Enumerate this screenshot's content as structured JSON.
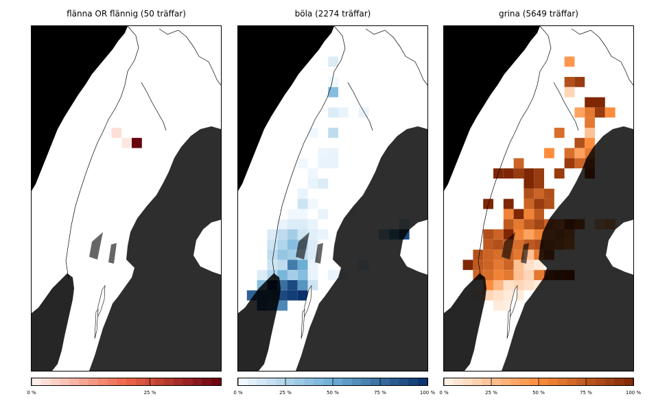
{
  "panels": [
    {
      "title": "flänna OR flännig (50 träffar)",
      "colormap": "reds",
      "colors": {
        "low": "#fff5f0",
        "mid": "#ef6548",
        "high": "#67000d"
      },
      "cbar_max_percent": 40,
      "ticks": [
        {
          "value": 0,
          "label": "0 %"
        },
        {
          "value": 25,
          "label": "25 %"
        }
      ],
      "cells": [
        {
          "c": 8,
          "r": 10,
          "v": 3
        },
        {
          "c": 9,
          "r": 11,
          "v": 2
        },
        {
          "c": 10,
          "r": 11,
          "v": 40
        }
      ]
    },
    {
      "title": "böla (2274 träffar)",
      "colormap": "blues",
      "colors": {
        "low": "#f7fbff",
        "mid": "#6baed6",
        "high": "#08306b"
      },
      "cbar_max_percent": 100,
      "ticks": [
        {
          "value": 0,
          "label": "0 %"
        },
        {
          "value": 25,
          "label": "25 %"
        },
        {
          "value": 50,
          "label": "50 %"
        },
        {
          "value": 75,
          "label": "75 %"
        },
        {
          "value": 100,
          "label": "100 %"
        }
      ],
      "cells": [
        {
          "c": 9,
          "r": 3,
          "v": 10
        },
        {
          "c": 9,
          "r": 5,
          "v": 2
        },
        {
          "c": 9,
          "r": 6,
          "v": 40
        },
        {
          "c": 9,
          "r": 8,
          "v": 10
        },
        {
          "c": 10,
          "r": 8,
          "v": 5
        },
        {
          "c": 12,
          "r": 8,
          "v": 5
        },
        {
          "c": 7,
          "r": 10,
          "v": 2
        },
        {
          "c": 9,
          "r": 10,
          "v": 20
        },
        {
          "c": 8,
          "r": 12,
          "v": 4
        },
        {
          "c": 9,
          "r": 12,
          "v": 5
        },
        {
          "c": 6,
          "r": 13,
          "v": 2
        },
        {
          "c": 8,
          "r": 13,
          "v": 5
        },
        {
          "c": 9,
          "r": 13,
          "v": 5
        },
        {
          "c": 7,
          "r": 14,
          "v": 3
        },
        {
          "c": 7,
          "r": 15,
          "v": 5
        },
        {
          "c": 6,
          "r": 16,
          "v": 5
        },
        {
          "c": 6,
          "r": 17,
          "v": 15
        },
        {
          "c": 7,
          "r": 17,
          "v": 2
        },
        {
          "c": 5,
          "r": 18,
          "v": 2
        },
        {
          "c": 6,
          "r": 18,
          "v": 2
        },
        {
          "c": 4,
          "r": 19,
          "v": 5
        },
        {
          "c": 5,
          "r": 19,
          "v": 10
        },
        {
          "c": 6,
          "r": 19,
          "v": 10
        },
        {
          "c": 7,
          "r": 19,
          "v": 5
        },
        {
          "c": 3,
          "r": 20,
          "v": 10
        },
        {
          "c": 4,
          "r": 20,
          "v": 20
        },
        {
          "c": 5,
          "r": 20,
          "v": 30
        },
        {
          "c": 6,
          "r": 20,
          "v": 15
        },
        {
          "c": 7,
          "r": 20,
          "v": 8
        },
        {
          "c": 8,
          "r": 20,
          "v": 5
        },
        {
          "c": 3,
          "r": 21,
          "v": 15
        },
        {
          "c": 4,
          "r": 21,
          "v": 25
        },
        {
          "c": 5,
          "r": 21,
          "v": 40
        },
        {
          "c": 6,
          "r": 21,
          "v": 30
        },
        {
          "c": 7,
          "r": 21,
          "v": 10
        },
        {
          "c": 3,
          "r": 22,
          "v": 20
        },
        {
          "c": 4,
          "r": 22,
          "v": 35
        },
        {
          "c": 5,
          "r": 22,
          "v": 30
        },
        {
          "c": 6,
          "r": 22,
          "v": 20
        },
        {
          "c": 7,
          "r": 22,
          "v": 10
        },
        {
          "c": 3,
          "r": 23,
          "v": 15
        },
        {
          "c": 4,
          "r": 23,
          "v": 20
        },
        {
          "c": 5,
          "r": 23,
          "v": 70
        },
        {
          "c": 6,
          "r": 23,
          "v": 50
        },
        {
          "c": 7,
          "r": 23,
          "v": 5
        },
        {
          "c": 2,
          "r": 24,
          "v": 10
        },
        {
          "c": 3,
          "r": 24,
          "v": 25
        },
        {
          "c": 4,
          "r": 24,
          "v": 45
        },
        {
          "c": 5,
          "r": 24,
          "v": 30
        },
        {
          "c": 6,
          "r": 24,
          "v": 40
        },
        {
          "c": 7,
          "r": 24,
          "v": 5
        },
        {
          "c": 2,
          "r": 25,
          "v": 40
        },
        {
          "c": 3,
          "r": 25,
          "v": 100
        },
        {
          "c": 4,
          "r": 25,
          "v": 75
        },
        {
          "c": 5,
          "r": 25,
          "v": 90
        },
        {
          "c": 6,
          "r": 25,
          "v": 60
        },
        {
          "c": 7,
          "r": 25,
          "v": 15
        },
        {
          "c": 1,
          "r": 26,
          "v": 80
        },
        {
          "c": 2,
          "r": 26,
          "v": 85
        },
        {
          "c": 3,
          "r": 26,
          "v": 85
        },
        {
          "c": 4,
          "r": 26,
          "v": 90
        },
        {
          "c": 5,
          "r": 26,
          "v": 95
        },
        {
          "c": 6,
          "r": 26,
          "v": 100
        },
        {
          "c": 2,
          "r": 27,
          "v": 85
        },
        {
          "c": 3,
          "r": 27,
          "v": 75
        },
        {
          "c": 4,
          "r": 27,
          "v": 65
        },
        {
          "c": 8,
          "r": 18,
          "v": 5
        },
        {
          "c": 8,
          "r": 15,
          "v": 10
        },
        {
          "c": 11,
          "r": 18,
          "v": 2
        },
        {
          "c": 16,
          "r": 19,
          "v": 20
        },
        {
          "c": 14,
          "r": 20,
          "v": 30
        },
        {
          "c": 15,
          "r": 20,
          "v": 60
        },
        {
          "c": 16,
          "r": 20,
          "v": 90
        },
        {
          "c": 12,
          "r": 23,
          "v": 10
        },
        {
          "c": 9,
          "r": 24,
          "v": 5
        },
        {
          "c": 10,
          "r": 24,
          "v": 5
        }
      ]
    },
    {
      "title": "grina (5649 träffar)",
      "colormap": "oranges",
      "colors": {
        "low": "#fff5eb",
        "mid": "#fd8d3c",
        "high": "#7f2704"
      },
      "cbar_max_percent": 100,
      "ticks": [
        {
          "value": 0,
          "label": "0 %"
        },
        {
          "value": 25,
          "label": "25 %"
        },
        {
          "value": 50,
          "label": "50 %"
        },
        {
          "value": 75,
          "label": "75 %"
        },
        {
          "value": 100,
          "label": "100 %"
        }
      ],
      "cells": [
        {
          "c": 12,
          "r": 3,
          "v": 45
        },
        {
          "c": 12,
          "r": 5,
          "v": 80
        },
        {
          "c": 13,
          "r": 5,
          "v": 90
        },
        {
          "c": 12,
          "r": 6,
          "v": 15
        },
        {
          "c": 14,
          "r": 7,
          "v": 100
        },
        {
          "c": 15,
          "r": 7,
          "v": 100
        },
        {
          "c": 13,
          "r": 8,
          "v": 40
        },
        {
          "c": 14,
          "r": 8,
          "v": 60
        },
        {
          "c": 15,
          "r": 8,
          "v": 90
        },
        {
          "c": 16,
          "r": 8,
          "v": 50
        },
        {
          "c": 14,
          "r": 9,
          "v": 60
        },
        {
          "c": 11,
          "r": 10,
          "v": 65
        },
        {
          "c": 14,
          "r": 10,
          "v": 25
        },
        {
          "c": 13,
          "r": 11,
          "v": 80
        },
        {
          "c": 14,
          "r": 11,
          "v": 50
        },
        {
          "c": 12,
          "r": 12,
          "v": 65
        },
        {
          "c": 13,
          "r": 12,
          "v": 40
        },
        {
          "c": 14,
          "r": 12,
          "v": 60
        },
        {
          "c": 7,
          "r": 13,
          "v": 70
        },
        {
          "c": 12,
          "r": 13,
          "v": 90
        },
        {
          "c": 13,
          "r": 13,
          "v": 70
        },
        {
          "c": 14,
          "r": 13,
          "v": 80
        },
        {
          "c": 5,
          "r": 14,
          "v": 100
        },
        {
          "c": 6,
          "r": 14,
          "v": 100
        },
        {
          "c": 7,
          "r": 14,
          "v": 90
        },
        {
          "c": 8,
          "r": 14,
          "v": 100
        },
        {
          "c": 9,
          "r": 14,
          "v": 90
        },
        {
          "c": 11,
          "r": 14,
          "v": 90
        },
        {
          "c": 14,
          "r": 14,
          "v": 90
        },
        {
          "c": 8,
          "r": 15,
          "v": 100
        },
        {
          "c": 9,
          "r": 15,
          "v": 90
        },
        {
          "c": 8,
          "r": 16,
          "v": 80
        },
        {
          "c": 9,
          "r": 16,
          "v": 70
        },
        {
          "c": 10,
          "r": 16,
          "v": 80
        },
        {
          "c": 4,
          "r": 17,
          "v": 100
        },
        {
          "c": 6,
          "r": 17,
          "v": 100
        },
        {
          "c": 8,
          "r": 17,
          "v": 70
        },
        {
          "c": 9,
          "r": 17,
          "v": 90
        },
        {
          "c": 10,
          "r": 17,
          "v": 80
        },
        {
          "c": 6,
          "r": 18,
          "v": 55
        },
        {
          "c": 7,
          "r": 18,
          "v": 100
        },
        {
          "c": 8,
          "r": 18,
          "v": 55
        },
        {
          "c": 9,
          "r": 18,
          "v": 75
        },
        {
          "c": 6,
          "r": 19,
          "v": 75
        },
        {
          "c": 7,
          "r": 19,
          "v": 60
        },
        {
          "c": 8,
          "r": 19,
          "v": 75
        },
        {
          "c": 9,
          "r": 19,
          "v": 85
        },
        {
          "c": 10,
          "r": 19,
          "v": 70
        },
        {
          "c": 11,
          "r": 19,
          "v": 60
        },
        {
          "c": 4,
          "r": 20,
          "v": 80
        },
        {
          "c": 5,
          "r": 20,
          "v": 70
        },
        {
          "c": 6,
          "r": 20,
          "v": 100
        },
        {
          "c": 7,
          "r": 20,
          "v": 55
        },
        {
          "c": 8,
          "r": 20,
          "v": 40
        },
        {
          "c": 9,
          "r": 20,
          "v": 55
        },
        {
          "c": 10,
          "r": 20,
          "v": 60
        },
        {
          "c": 11,
          "r": 20,
          "v": 70
        },
        {
          "c": 12,
          "r": 20,
          "v": 60
        },
        {
          "c": 4,
          "r": 21,
          "v": 75
        },
        {
          "c": 5,
          "r": 21,
          "v": 80
        },
        {
          "c": 6,
          "r": 21,
          "v": 70
        },
        {
          "c": 7,
          "r": 21,
          "v": 65
        },
        {
          "c": 8,
          "r": 21,
          "v": 75
        },
        {
          "c": 9,
          "r": 21,
          "v": 80
        },
        {
          "c": 10,
          "r": 21,
          "v": 70
        },
        {
          "c": 11,
          "r": 21,
          "v": 65
        },
        {
          "c": 3,
          "r": 22,
          "v": 80
        },
        {
          "c": 4,
          "r": 22,
          "v": 70
        },
        {
          "c": 5,
          "r": 22,
          "v": 65
        },
        {
          "c": 6,
          "r": 22,
          "v": 70
        },
        {
          "c": 7,
          "r": 22,
          "v": 60
        },
        {
          "c": 8,
          "r": 22,
          "v": 25
        },
        {
          "c": 9,
          "r": 22,
          "v": 60
        },
        {
          "c": 10,
          "r": 22,
          "v": 80
        },
        {
          "c": 2,
          "r": 23,
          "v": 100
        },
        {
          "c": 3,
          "r": 23,
          "v": 75
        },
        {
          "c": 4,
          "r": 23,
          "v": 70
        },
        {
          "c": 5,
          "r": 23,
          "v": 60
        },
        {
          "c": 6,
          "r": 23,
          "v": 70
        },
        {
          "c": 7,
          "r": 23,
          "v": 25
        },
        {
          "c": 8,
          "r": 23,
          "v": 10
        },
        {
          "c": 9,
          "r": 23,
          "v": 5
        },
        {
          "c": 3,
          "r": 24,
          "v": 70
        },
        {
          "c": 4,
          "r": 24,
          "v": 65
        },
        {
          "c": 5,
          "r": 24,
          "v": 55
        },
        {
          "c": 6,
          "r": 24,
          "v": 60
        },
        {
          "c": 7,
          "r": 24,
          "v": 25
        },
        {
          "c": 8,
          "r": 24,
          "v": 15
        },
        {
          "c": 9,
          "r": 24,
          "v": 60
        },
        {
          "c": 10,
          "r": 24,
          "v": 90
        },
        {
          "c": 11,
          "r": 24,
          "v": 95
        },
        {
          "c": 12,
          "r": 24,
          "v": 100
        },
        {
          "c": 4,
          "r": 25,
          "v": 50
        },
        {
          "c": 5,
          "r": 25,
          "v": 30
        },
        {
          "c": 6,
          "r": 25,
          "v": 10
        },
        {
          "c": 7,
          "r": 25,
          "v": 15
        },
        {
          "c": 8,
          "r": 25,
          "v": 10
        },
        {
          "c": 3,
          "r": 26,
          "v": 5
        },
        {
          "c": 4,
          "r": 26,
          "v": 15
        },
        {
          "c": 5,
          "r": 26,
          "v": 10
        },
        {
          "c": 6,
          "r": 26,
          "v": 5
        },
        {
          "c": 7,
          "r": 26,
          "v": 5
        },
        {
          "c": 5,
          "r": 27,
          "v": 5
        },
        {
          "c": 6,
          "r": 27,
          "v": 3
        },
        {
          "c": 10,
          "r": 12,
          "v": 50
        },
        {
          "c": 12,
          "r": 19,
          "v": 90
        },
        {
          "c": 13,
          "r": 19,
          "v": 75
        },
        {
          "c": 15,
          "r": 19,
          "v": 30
        },
        {
          "c": 16,
          "r": 19,
          "v": 40
        },
        {
          "c": 9,
          "r": 25,
          "v": 5
        },
        {
          "c": 12,
          "r": 21,
          "v": 55
        }
      ]
    }
  ]
}
